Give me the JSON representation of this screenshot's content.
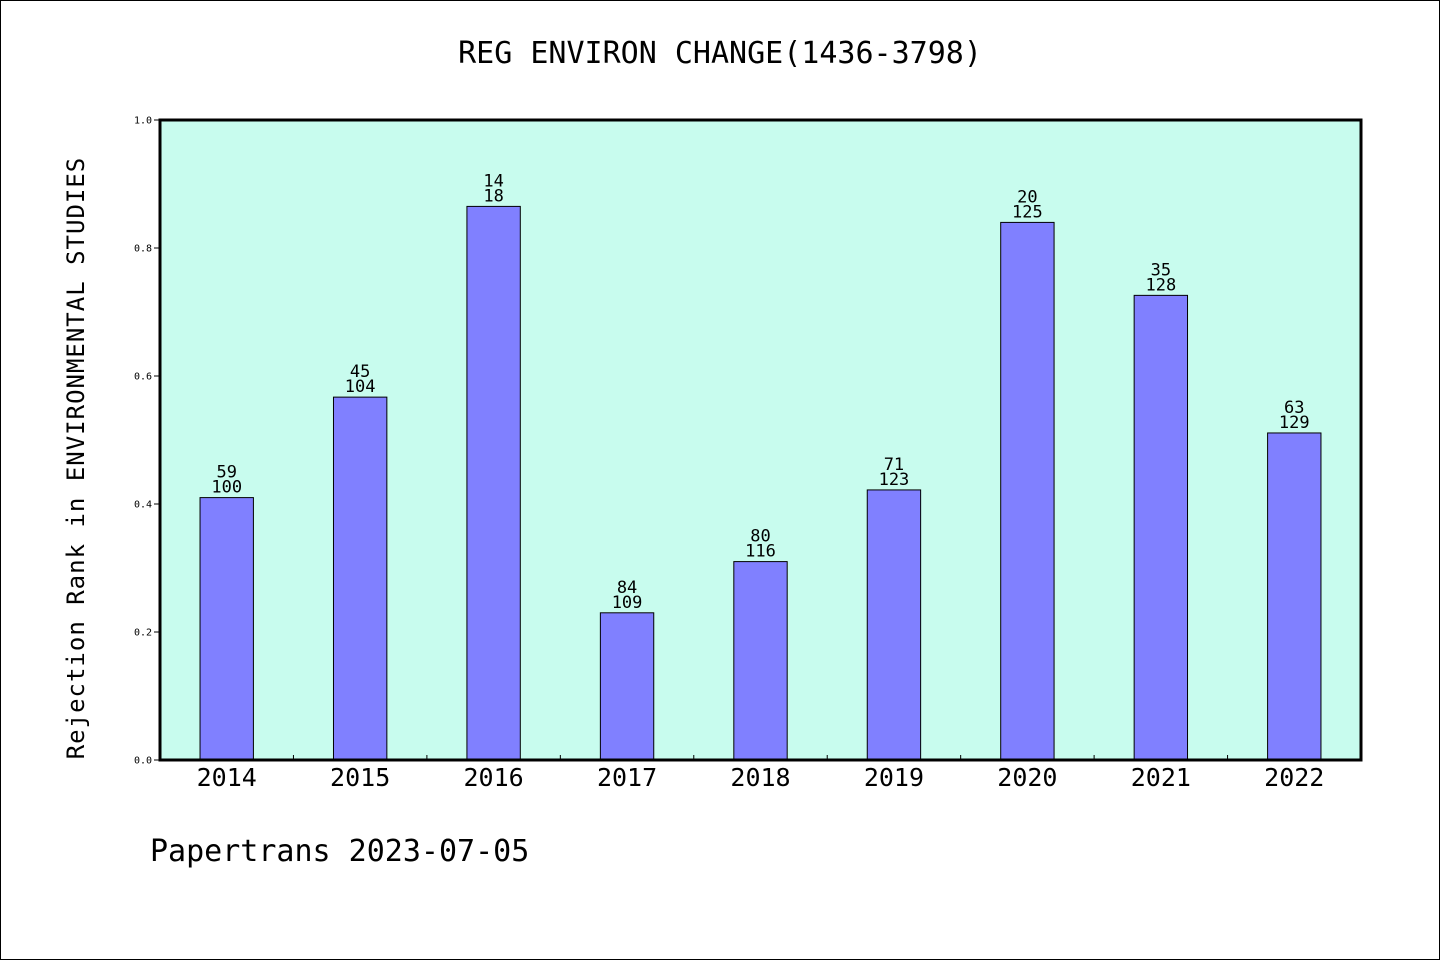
{
  "chart_data": {
    "type": "bar",
    "title": "REG ENVIRON CHANGE(1436-3798)",
    "ylabel": "Rejection Rank in ENVIRONMENTAL STUDIES",
    "xlabel": "",
    "categories": [
      "2014",
      "2015",
      "2016",
      "2017",
      "2018",
      "2019",
      "2020",
      "2021",
      "2022"
    ],
    "values": [
      0.41,
      0.567,
      0.865,
      0.23,
      0.31,
      0.422,
      0.84,
      0.726,
      0.511
    ],
    "labels_top": [
      "59",
      "45",
      "14",
      "84",
      "80",
      "71",
      "20",
      "35",
      "63"
    ],
    "labels_bottom": [
      "100",
      "104",
      "18",
      "109",
      "116",
      "123",
      "125",
      "128",
      "129"
    ],
    "ylim": [
      0,
      1.0
    ],
    "yticks": [
      "0.0",
      "0.2",
      "0.4",
      "0.6",
      "0.8",
      "1.0"
    ],
    "grid": false,
    "colors": {
      "plot_background": "#c8fcee",
      "bar_fill": "#8080ff",
      "bar_edge": "#000000"
    }
  },
  "footer": "Papertrans 2023-07-05"
}
